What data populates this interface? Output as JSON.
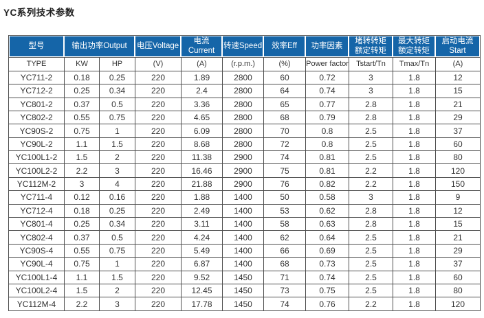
{
  "page_title": "YC系列技术参数",
  "colors": {
    "header_bg": "#1565a8",
    "header_text": "#ffffff",
    "grid_border": "#4d4d4d",
    "body_text": "#333333",
    "page_bg": "#ffffff"
  },
  "table": {
    "top_headers": [
      {
        "label": "型号",
        "span": 1
      },
      {
        "label": "输出功率Output",
        "span": 2
      },
      {
        "label": "电压Voltage",
        "span": 1
      },
      {
        "label": "电流Current",
        "span": 1
      },
      {
        "label": "转速Speed",
        "span": 1
      },
      {
        "label": "效率Eff",
        "span": 1
      },
      {
        "label": "功率因素",
        "span": 1
      },
      {
        "label": "堵转转矩\n额定转矩",
        "span": 1
      },
      {
        "label": "最大转矩\n额定转矩",
        "span": 1
      },
      {
        "label": "启动电流\nStart",
        "span": 1
      }
    ],
    "unit_headers": [
      "TYPE",
      "KW",
      "HP",
      "(V)",
      "(A)",
      "(r.p.m.)",
      "(%)",
      "Power factor",
      "Tstart/Tn",
      "Tmax/Tn",
      "(A)"
    ],
    "rows": [
      [
        "YC711-2",
        "0.18",
        "0.25",
        "220",
        "1.89",
        "2800",
        "60",
        "0.72",
        "3",
        "1.8",
        "12"
      ],
      [
        "YC712-2",
        "0.25",
        "0.34",
        "220",
        "2.4",
        "2800",
        "64",
        "0.74",
        "3",
        "1.8",
        "15"
      ],
      [
        "YC801-2",
        "0.37",
        "0.5",
        "220",
        "3.36",
        "2800",
        "65",
        "0.77",
        "2.8",
        "1.8",
        "21"
      ],
      [
        "YC802-2",
        "0.55",
        "0.75",
        "220",
        "4.65",
        "2800",
        "68",
        "0.79",
        "2.8",
        "1.8",
        "29"
      ],
      [
        "YC90S-2",
        "0.75",
        "1",
        "220",
        "6.09",
        "2800",
        "70",
        "0.8",
        "2.5",
        "1.8",
        "37"
      ],
      [
        "YC90L-2",
        "1.1",
        "1.5",
        "220",
        "8.68",
        "2800",
        "72",
        "0.8",
        "2.5",
        "1.8",
        "60"
      ],
      [
        "YC100L1-2",
        "1.5",
        "2",
        "220",
        "11.38",
        "2900",
        "74",
        "0.81",
        "2.5",
        "1.8",
        "80"
      ],
      [
        "YC100L2-2",
        "2.2",
        "3",
        "220",
        "16.46",
        "2900",
        "75",
        "0.81",
        "2.2",
        "1.8",
        "120"
      ],
      [
        "YC112M-2",
        "3",
        "4",
        "220",
        "21.88",
        "2900",
        "76",
        "0.82",
        "2.2",
        "1.8",
        "150"
      ],
      [
        "YC711-4",
        "0.12",
        "0.16",
        "220",
        "1.88",
        "1400",
        "50",
        "0.58",
        "3",
        "1.8",
        "9"
      ],
      [
        "YC712-4",
        "0.18",
        "0.25",
        "220",
        "2.49",
        "1400",
        "53",
        "0.62",
        "2.8",
        "1.8",
        "12"
      ],
      [
        "YC801-4",
        "0.25",
        "0.34",
        "220",
        "3.11",
        "1400",
        "58",
        "0.63",
        "2.8",
        "1.8",
        "15"
      ],
      [
        "YC802-4",
        "0.37",
        "0.5",
        "220",
        "4.24",
        "1400",
        "62",
        "0.64",
        "2.5",
        "1.8",
        "21"
      ],
      [
        "YC90S-4",
        "0.55",
        "0.75",
        "220",
        "5.49",
        "1400",
        "66",
        "0.69",
        "2.5",
        "1.8",
        "29"
      ],
      [
        "YC90L-4",
        "0.75",
        "1",
        "220",
        "6.87",
        "1400",
        "68",
        "0.73",
        "2.5",
        "1.8",
        "37"
      ],
      [
        "YC100L1-4",
        "1.1",
        "1.5",
        "220",
        "9.52",
        "1450",
        "71",
        "0.74",
        "2.5",
        "1.8",
        "60"
      ],
      [
        "YC100L2-4",
        "1.5",
        "2",
        "220",
        "12.45",
        "1450",
        "73",
        "0.75",
        "2.5",
        "1.8",
        "80"
      ],
      [
        "YC112M-4",
        "2.2",
        "3",
        "220",
        "17.78",
        "1450",
        "74",
        "0.76",
        "2.2",
        "1.8",
        "120"
      ]
    ]
  }
}
